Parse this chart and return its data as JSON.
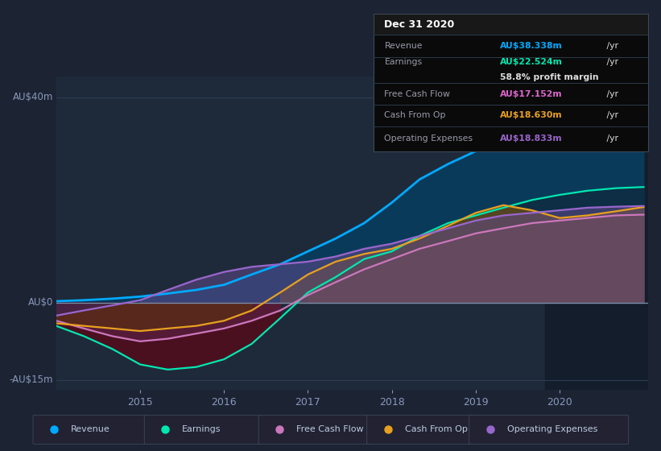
{
  "bg_color": "#1c2333",
  "plot_bg_color": "#1e2a3a",
  "grid_color": "#2e3f55",
  "zero_line_color": "#7a8fa8",
  "ax_label_color": "#8899bb",
  "ylim": [
    -17,
    44
  ],
  "x_years": [
    2014.0,
    2014.33,
    2014.67,
    2015.0,
    2015.33,
    2015.67,
    2016.0,
    2016.33,
    2016.67,
    2017.0,
    2017.33,
    2017.67,
    2018.0,
    2018.33,
    2018.67,
    2019.0,
    2019.33,
    2019.67,
    2020.0,
    2020.33,
    2020.67,
    2021.0
  ],
  "revenue": [
    0.3,
    0.5,
    0.8,
    1.2,
    1.8,
    2.5,
    3.5,
    5.5,
    7.5,
    10.0,
    12.5,
    15.5,
    19.5,
    24.0,
    27.0,
    29.5,
    31.5,
    33.0,
    34.5,
    35.5,
    37.0,
    38.338
  ],
  "earnings": [
    -4.5,
    -6.5,
    -9.0,
    -12.0,
    -13.0,
    -12.5,
    -11.0,
    -8.0,
    -3.0,
    2.0,
    5.0,
    8.5,
    10.0,
    13.0,
    15.5,
    17.0,
    18.5,
    20.0,
    21.0,
    21.8,
    22.3,
    22.524
  ],
  "free_cash_flow": [
    -3.5,
    -5.0,
    -6.5,
    -7.5,
    -7.0,
    -6.0,
    -5.0,
    -3.5,
    -1.5,
    1.5,
    4.0,
    6.5,
    8.5,
    10.5,
    12.0,
    13.5,
    14.5,
    15.5,
    16.0,
    16.5,
    17.0,
    17.152
  ],
  "cash_from_op": [
    -4.0,
    -4.5,
    -5.0,
    -5.5,
    -5.0,
    -4.5,
    -3.5,
    -1.5,
    2.0,
    5.5,
    8.0,
    9.5,
    10.5,
    12.5,
    15.0,
    17.5,
    19.0,
    18.0,
    16.5,
    17.0,
    17.8,
    18.63
  ],
  "op_expenses": [
    -2.5,
    -1.5,
    -0.5,
    0.5,
    2.5,
    4.5,
    6.0,
    7.0,
    7.5,
    8.0,
    9.0,
    10.5,
    11.5,
    13.0,
    14.5,
    16.0,
    17.0,
    17.5,
    18.0,
    18.5,
    18.7,
    18.833
  ],
  "revenue_color": "#00aaff",
  "earnings_color": "#00e8b0",
  "fcf_color": "#cc77bb",
  "cashop_color": "#e8a020",
  "opex_color": "#9966cc",
  "xticks": [
    2015,
    2016,
    2017,
    2018,
    2019,
    2020
  ],
  "legend_labels": [
    "Revenue",
    "Earnings",
    "Free Cash Flow",
    "Cash From Op",
    "Operating Expenses"
  ],
  "legend_colors": [
    "#00aaff",
    "#00e8b0",
    "#cc77bb",
    "#e8a020",
    "#9966cc"
  ],
  "highlight_x_start": 2019.83
}
